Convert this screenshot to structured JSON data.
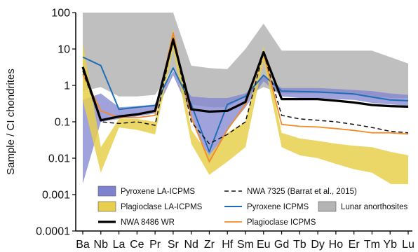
{
  "chart_data": {
    "type": "line",
    "ylabel": "Sample / CI chondrites",
    "yscale": "log",
    "ylim": [
      0.0001,
      100
    ],
    "y_ticks": [
      {
        "v": 100,
        "label": "100"
      },
      {
        "v": 10,
        "label": "10"
      },
      {
        "v": 1,
        "label": "1"
      },
      {
        "v": 0.1,
        "label": "0.1"
      },
      {
        "v": 0.01,
        "label": "0.01"
      },
      {
        "v": 0.001,
        "label": "0.001"
      },
      {
        "v": 0.0001,
        "label": "0.0001"
      }
    ],
    "categories": [
      "Ba",
      "Nb",
      "La",
      "Ce",
      "Pr",
      "Sr",
      "Nd",
      "Zr",
      "Hf",
      "Sm",
      "Eu",
      "Gd",
      "Tb",
      "Dy",
      "Ho",
      "Er",
      "Tm",
      "Yb",
      "Lu"
    ],
    "bands": [
      {
        "name": "Lunar anorthosites",
        "fill": "#b4b4b4",
        "opacity": 0.85,
        "upper": [
          100,
          100,
          100,
          100,
          100,
          100,
          3.5,
          3.0,
          2.8,
          10,
          50,
          9,
          9,
          9,
          9,
          9,
          9,
          6,
          4
        ],
        "lower": [
          0.7,
          0.9,
          0.5,
          0.5,
          0.55,
          3.0,
          0.3,
          0.25,
          0.25,
          0.5,
          0.9,
          0.6,
          0.6,
          0.6,
          0.6,
          0.55,
          0.5,
          0.45,
          0.45
        ]
      },
      {
        "name": "Pyroxene LA-ICPMS",
        "fill": "#7f83cf",
        "opacity": 0.75,
        "upper": [
          0.4,
          0.6,
          0.25,
          0.27,
          0.3,
          2.5,
          0.5,
          0.45,
          0.45,
          0.6,
          1.8,
          0.85,
          0.85,
          0.85,
          0.8,
          0.75,
          0.7,
          0.6,
          0.55
        ],
        "lower": [
          0.002,
          0.1,
          0.12,
          0.14,
          0.17,
          1.9,
          0.15,
          0.007,
          0.06,
          0.25,
          1.3,
          0.5,
          0.45,
          0.45,
          0.42,
          0.4,
          0.33,
          0.3,
          0.28
        ]
      },
      {
        "name": "Plagioclase LA-ICPMS",
        "fill": "#e8d04e",
        "opacity": 0.85,
        "upper": [
          15,
          0.02,
          0.12,
          0.12,
          0.1,
          35,
          0.06,
          0.012,
          0.05,
          0.1,
          12,
          0.05,
          0.035,
          0.03,
          0.025,
          0.022,
          0.02,
          0.015,
          0.012
        ],
        "lower": [
          0.4,
          0.004,
          0.07,
          0.06,
          0.045,
          10,
          0.025,
          0.0035,
          0.008,
          0.02,
          5,
          0.02,
          0.012,
          0.01,
          0.007,
          0.005,
          0.004,
          0.002,
          0.0011
        ]
      }
    ],
    "series": [
      {
        "name": "Pyroxene ICPMS",
        "color": "#1f6eb5",
        "width": 2,
        "dash": "",
        "values": [
          6.0,
          3.5,
          0.22,
          0.25,
          0.28,
          3.0,
          0.3,
          0.015,
          0.3,
          0.5,
          1.9,
          0.7,
          0.68,
          0.66,
          0.62,
          0.58,
          0.48,
          0.4,
          0.38
        ]
      },
      {
        "name": "Plagioclase ICPMS",
        "color": "#f28c28",
        "width": 1.8,
        "dash": "",
        "values": [
          2.0,
          0.2,
          0.13,
          0.13,
          0.15,
          28,
          0.13,
          0.008,
          0.06,
          0.3,
          7.5,
          0.085,
          0.075,
          0.072,
          0.065,
          0.058,
          0.05,
          0.05,
          0.046
        ]
      },
      {
        "name": "NWA 7325 (Barrat et al., 2015)",
        "color": "#111111",
        "width": 1.5,
        "dash": "6,4",
        "values": [
          2.5,
          0.1,
          0.09,
          0.1,
          0.08,
          20,
          0.1,
          0.025,
          0.045,
          0.1,
          8,
          0.15,
          0.12,
          0.11,
          0.1,
          0.085,
          0.07,
          0.055,
          0.05
        ]
      },
      {
        "name": "NWA 8486 WR",
        "color": "#000000",
        "width": 3.2,
        "dash": "",
        "values": [
          3.2,
          0.11,
          0.14,
          0.16,
          0.2,
          18,
          0.22,
          0.19,
          0.2,
          0.35,
          8.2,
          0.42,
          0.42,
          0.42,
          0.38,
          0.34,
          0.29,
          0.27,
          0.26
        ]
      }
    ],
    "legend": {
      "placement": "bottom-center",
      "items": [
        {
          "label": "Pyroxene LA-ICPMS",
          "kind": "patch",
          "color": "#7f83cf"
        },
        {
          "label": "NWA 7325 (Barrat et al., 2015)",
          "kind": "line",
          "color": "#111111",
          "dash": "6,4",
          "width": 1.5
        },
        {
          "label": "Plagioclase LA-ICPMS",
          "kind": "patch",
          "color": "#e8d04e"
        },
        {
          "label": "Pyroxene ICPMS",
          "kind": "line",
          "color": "#1f6eb5",
          "width": 2
        },
        {
          "label": "Lunar anorthosites",
          "kind": "patch",
          "color": "#b4b4b4"
        },
        {
          "label": "NWA 8486 WR",
          "kind": "line",
          "color": "#000000",
          "width": 3.2
        },
        {
          "label": "Plagioclase ICPMS",
          "kind": "line",
          "color": "#f28c28",
          "width": 1.8
        }
      ]
    }
  }
}
